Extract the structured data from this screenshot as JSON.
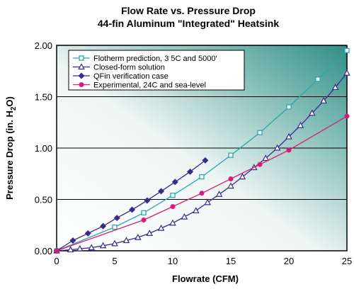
{
  "chart_data": {
    "type": "line",
    "title": "Flow Rate vs. Pressure Drop",
    "subtitle": "44-fin Aluminum \"Integrated\" Heatsink",
    "xlabel": "Flowrate (CFM)",
    "ylabel": {
      "main": "Pressure Drop  (in. H",
      "sub": "2",
      "tail": "O)"
    },
    "xlim": [
      0,
      25
    ],
    "ylim": [
      0,
      2.0
    ],
    "xticks": [
      "0",
      "5",
      "10",
      "15",
      "20",
      "25"
    ],
    "yticks": [
      "0.00",
      "0.50",
      "1.00",
      "1.50",
      "2.00"
    ],
    "grid": "horizontal",
    "legend_position": "top-left",
    "series": [
      {
        "name": "Flotherm prediction, 3 5C and 5000'",
        "color": "#2aa6a8",
        "marker": "square",
        "x": [
          0,
          5,
          7.5,
          10,
          12.5,
          15,
          17.5,
          20,
          22.5,
          25
        ],
        "y": [
          0,
          0.23,
          0.37,
          0.54,
          0.72,
          0.93,
          1.15,
          1.4,
          1.67,
          1.95
        ]
      },
      {
        "name": "Closed-form solution",
        "color": "#3a2a8a",
        "marker": "triangle",
        "x": [
          0,
          1.2,
          2,
          3,
          4,
          5,
          6,
          7,
          8,
          9,
          10,
          11,
          12,
          13,
          14,
          15,
          16,
          17,
          18,
          19,
          20,
          21,
          22,
          23,
          24,
          25
        ],
        "y": [
          0,
          0.01,
          0.02,
          0.03,
          0.05,
          0.07,
          0.1,
          0.13,
          0.17,
          0.22,
          0.27,
          0.33,
          0.39,
          0.47,
          0.55,
          0.63,
          0.72,
          0.81,
          0.9,
          1.0,
          1.11,
          1.22,
          1.34,
          1.46,
          1.59,
          1.73
        ]
      },
      {
        "name": "QFin verification case",
        "color": "#3a2a8a",
        "marker": "diamond",
        "x": [
          0,
          1.4,
          2.7,
          4,
          5.2,
          6.5,
          7.8,
          9,
          10.2,
          11.5,
          12.8
        ],
        "y": [
          0,
          0.1,
          0.17,
          0.24,
          0.32,
          0.4,
          0.49,
          0.58,
          0.67,
          0.77,
          0.88
        ]
      },
      {
        "name": "Experimental, 24C and sea-level",
        "color": "#d81b78",
        "marker": "circle",
        "x": [
          0,
          7.5,
          10,
          12.5,
          15,
          17.5,
          20,
          25
        ],
        "y": [
          0,
          0.3,
          0.43,
          0.56,
          0.7,
          0.84,
          0.98,
          1.31
        ]
      }
    ]
  }
}
